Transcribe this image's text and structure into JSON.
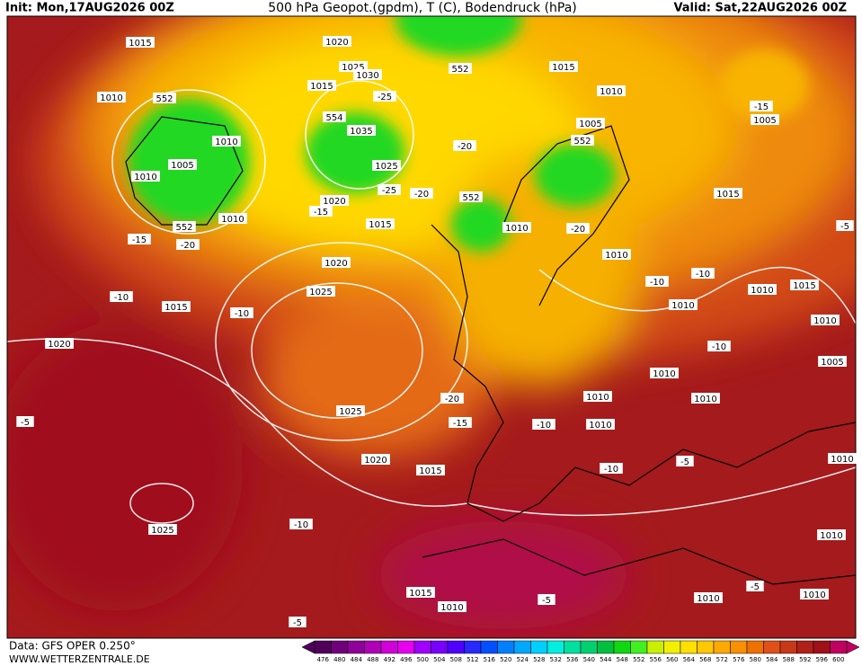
{
  "header": {
    "init": "Init: Mon,17AUG2026 00Z",
    "title": "500 hPa Geopot.(gpdm), T (C), Bodendruck (hPa)",
    "valid": "Valid: Sat,22AUG2026 00Z"
  },
  "footer": {
    "data": "Data: GFS OPER 0.250°",
    "site": "WWW.WETTERZENTRALE.DE"
  },
  "colorbar": {
    "ticks": [
      476,
      480,
      484,
      488,
      492,
      496,
      500,
      504,
      508,
      512,
      516,
      520,
      524,
      528,
      532,
      536,
      540,
      544,
      548,
      552,
      556,
      560,
      564,
      568,
      572,
      576,
      580,
      584,
      588,
      592,
      596,
      600
    ],
    "colors": [
      "#50005a",
      "#70007a",
      "#90009a",
      "#b000b8",
      "#d000d8",
      "#e800f0",
      "#a000ff",
      "#7800ff",
      "#5000ff",
      "#2828ff",
      "#0050ff",
      "#0080ff",
      "#00a8ff",
      "#00d0ff",
      "#00f0e0",
      "#00e0a0",
      "#00d070",
      "#00c040",
      "#10d810",
      "#40f020",
      "#c8f000",
      "#f0f000",
      "#ffe000",
      "#ffc800",
      "#ffa800",
      "#f89000",
      "#f07000",
      "#e05018",
      "#c83818",
      "#b02018",
      "#a01018",
      "#c00060"
    ]
  },
  "map": {
    "labels": [
      "1015",
      "1020",
      "1025",
      "1030",
      "552",
      "1015",
      "1010",
      "1010",
      "552",
      "1015",
      "-25",
      "554",
      "1035",
      "1005",
      "-15",
      "1005",
      "1010",
      "552",
      "-20",
      "1005",
      "1025",
      "1010",
      "-25",
      "-20",
      "552",
      "1020",
      "-15",
      "1015",
      "1010",
      "552",
      "1015",
      "1010",
      "-20",
      "-15",
      "-20",
      "-5",
      "1010",
      "1020",
      "-10",
      "-10",
      "1010",
      "1015",
      "1025",
      "-10",
      "1015",
      "1010",
      "-10",
      "1010",
      "1020",
      "-10",
      "1005",
      "1010",
      "-20",
      "1010",
      "1010",
      "1025",
      "-15",
      "-5",
      "-10",
      "1010",
      "1020",
      "1015",
      "-10",
      "-5",
      "1010",
      "-10",
      "1025",
      "1010",
      "1015",
      "-5",
      "1010",
      "1010",
      "-5",
      "1010",
      "-5"
    ]
  }
}
